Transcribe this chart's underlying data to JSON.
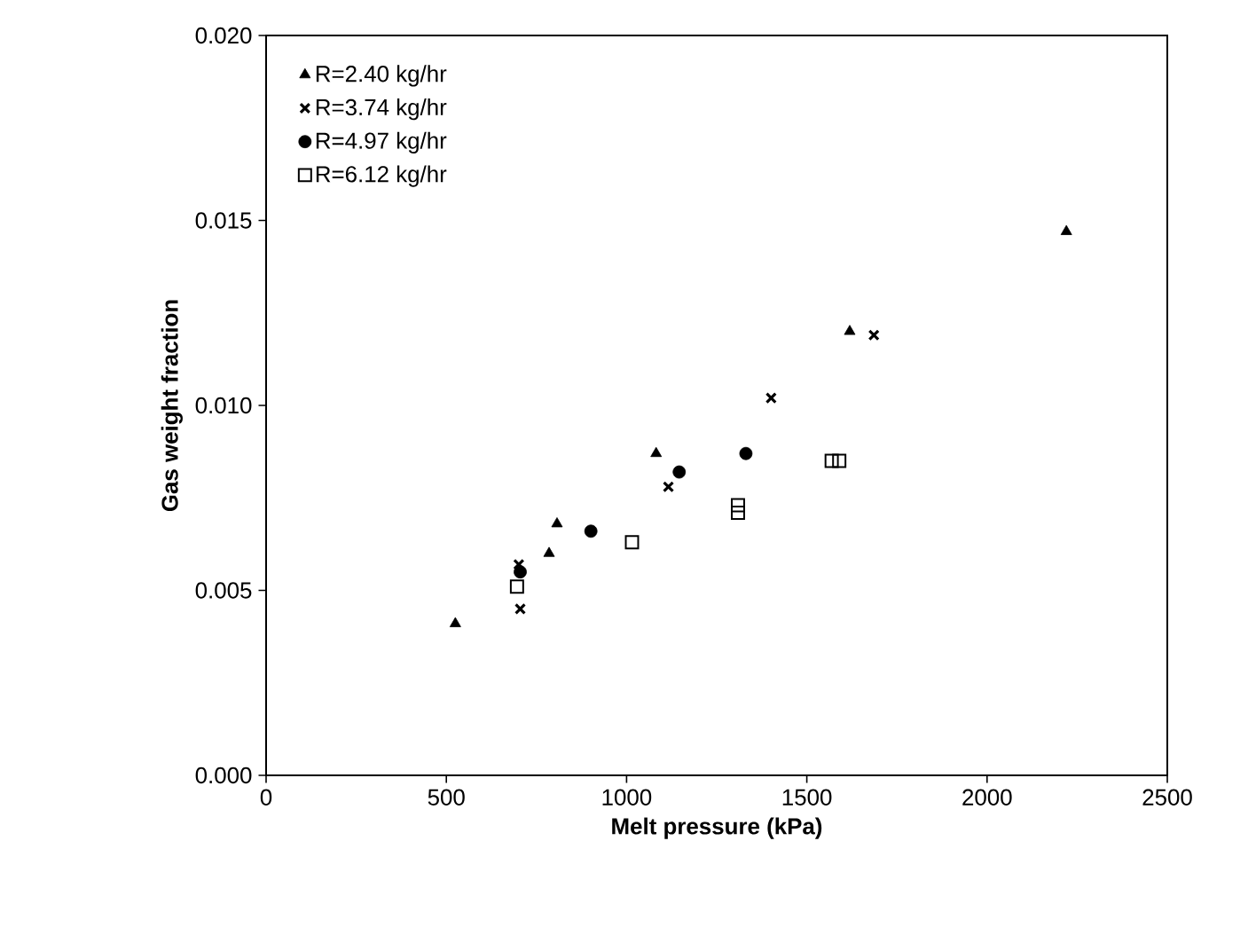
{
  "chart_data": {
    "type": "scatter",
    "xlabel": "Melt pressure (kPa)",
    "ylabel": "Gas weight fraction",
    "xlim": [
      0,
      2500
    ],
    "xticks": [
      0,
      500,
      1000,
      1500,
      2000,
      2500
    ],
    "ylim": [
      0,
      0.02
    ],
    "yticks": [
      {
        "value": 0,
        "label": "0.000"
      },
      {
        "value": 0.005,
        "label": "0.005"
      },
      {
        "value": 0.01,
        "label": "0.010"
      },
      {
        "value": 0.015,
        "label": "0.015"
      },
      {
        "value": 0.02,
        "label": "0.020"
      }
    ],
    "legend": "top left",
    "grid": false,
    "series": [
      {
        "name": "R=2.40 kg/hr",
        "color": "#000000",
        "marker": "triangle",
        "x": [
          525,
          785,
          807,
          1082,
          1619,
          2220
        ],
        "values": [
          0.0041,
          0.006,
          0.0068,
          0.0087,
          0.012,
          0.0147
        ]
      },
      {
        "name": "R=3.74 kg/hr",
        "color": "#000000",
        "marker": "cross",
        "x": [
          705,
          701,
          1116,
          1401,
          1686
        ],
        "values": [
          0.0045,
          0.0057,
          0.0078,
          0.0102,
          0.0119
        ]
      },
      {
        "name": "R=4.97 kg/hr",
        "color": "#000000",
        "marker": "circle",
        "x": [
          705,
          901,
          1146,
          1331
        ],
        "values": [
          0.0055,
          0.0066,
          0.0082,
          0.0087
        ]
      },
      {
        "name": "R=6.12 kg/hr",
        "color": "#000000",
        "marker": "square",
        "x": [
          696,
          1015,
          1309,
          1309,
          1569,
          1590
        ],
        "values": [
          0.0051,
          0.0063,
          0.0073,
          0.0071,
          0.0085,
          0.0085
        ]
      }
    ]
  }
}
